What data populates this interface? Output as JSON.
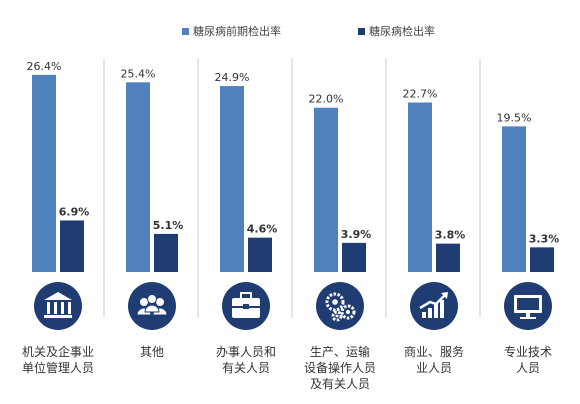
{
  "chart_data": {
    "type": "bar",
    "categories": [
      [
        "机关及企事业",
        "单位管理人员"
      ],
      [
        "其他"
      ],
      [
        "办事人员和",
        "有关人员"
      ],
      [
        "生产、运输",
        "设备操作人员",
        "及有关人员"
      ],
      [
        "商业、服务",
        "业人员"
      ],
      [
        "专业技术",
        "人员"
      ]
    ],
    "series": [
      {
        "name": "糖尿病前期检出率",
        "values": [
          26.4,
          25.4,
          24.9,
          22.0,
          22.7,
          19.5
        ],
        "labels": [
          "26.4%",
          "25.4%",
          "24.9%",
          "22.0%",
          "22.7%",
          "19.5%"
        ],
        "color": "#4f81bd"
      },
      {
        "name": "糖尿病检出率",
        "values": [
          6.9,
          5.1,
          4.6,
          3.9,
          3.8,
          3.3
        ],
        "labels": [
          "6.9%",
          "5.1%",
          "4.6%",
          "3.9%",
          "3.8%",
          "3.3%"
        ],
        "color": "#1f3d73"
      }
    ],
    "ylim": [
      0,
      30
    ],
    "grid": false,
    "legend": "top-right",
    "icons": [
      "building-icon",
      "group-icon",
      "briefcase-icon",
      "gears-icon",
      "growth-chart-icon",
      "monitor-icon"
    ],
    "icon_color": "#1f3d73",
    "divider_color": "#cccccc"
  }
}
